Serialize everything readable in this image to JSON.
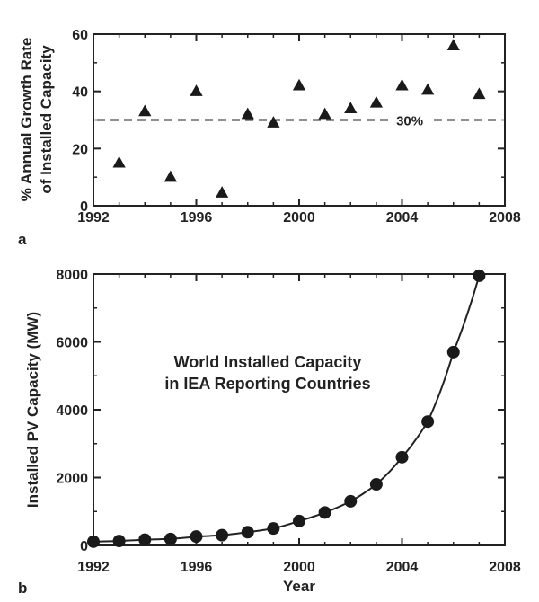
{
  "chart_data": [
    {
      "type": "scatter",
      "panel_label": "a",
      "xlabel": "",
      "ylabel_lines": [
        "% Annual Growth Rate",
        "of Installed Capacity"
      ],
      "xlim": [
        1992,
        2008
      ],
      "ylim": [
        0,
        60
      ],
      "x_ticks": [
        1992,
        1996,
        2000,
        2004,
        2008
      ],
      "y_ticks": [
        0,
        20,
        40,
        60
      ],
      "marker": "triangle",
      "grid": false,
      "x": [
        1993,
        1994,
        1995,
        1996,
        1997,
        1998,
        1999,
        2000,
        2001,
        2002,
        2003,
        2004,
        2005,
        2006,
        2007
      ],
      "y": [
        15,
        33,
        10,
        40,
        4.5,
        32,
        29,
        42,
        32,
        34,
        36,
        42,
        40.5,
        56,
        39
      ],
      "reference_line": {
        "y": 30,
        "style": "dashed",
        "label": "30%"
      }
    },
    {
      "type": "scatter",
      "panel_label": "b",
      "xlabel": "Year",
      "ylabel": "Installed PV Capacity (MW)",
      "xlim": [
        1992,
        2008
      ],
      "ylim": [
        0,
        8000
      ],
      "x_ticks": [
        1992,
        1996,
        2000,
        2004,
        2008
      ],
      "y_ticks": [
        0,
        2000,
        4000,
        6000,
        8000
      ],
      "marker": "circle",
      "grid": false,
      "fit_curve": "exponential",
      "annotation_lines": [
        "World Installed Capacity",
        "in IEA Reporting Countries"
      ],
      "x": [
        1992,
        1993,
        1994,
        1995,
        1996,
        1997,
        1998,
        1999,
        2000,
        2001,
        2002,
        2003,
        2004,
        2005,
        2006,
        2007
      ],
      "y": [
        110,
        130,
        170,
        190,
        260,
        300,
        390,
        500,
        720,
        970,
        1300,
        1800,
        2600,
        3650,
        5700,
        7950
      ]
    }
  ]
}
